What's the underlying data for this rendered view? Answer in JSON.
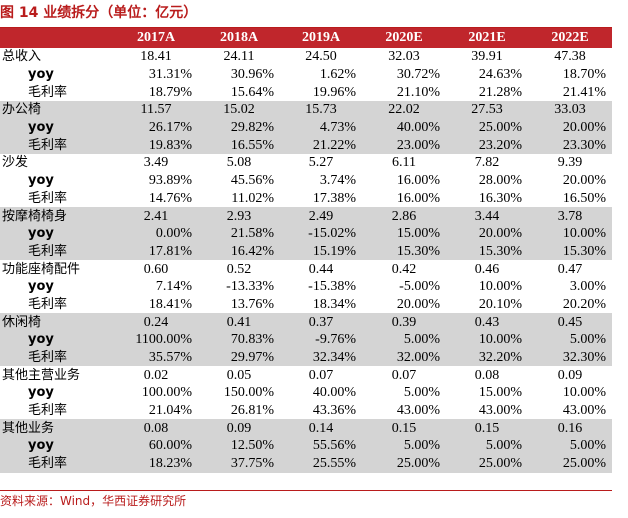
{
  "title": "图 14  业绩拆分（单位：亿元）",
  "header": {
    "label": "",
    "years": [
      "2017A",
      "2018A",
      "2019A",
      "2020E",
      "2021E",
      "2022E"
    ]
  },
  "rows": [
    {
      "label": "总收入",
      "kind": "main",
      "values": [
        "18.41",
        "24.11",
        "24.50",
        "32.03",
        "39.91",
        "47.38"
      ]
    },
    {
      "label": "yoy",
      "kind": "yoy",
      "values": [
        "31.31%",
        "30.96%",
        "1.62%",
        "30.72%",
        "24.63%",
        "18.70%"
      ]
    },
    {
      "label": "毛利率",
      "kind": "margin",
      "values": [
        "18.79%",
        "15.64%",
        "19.96%",
        "21.10%",
        "21.28%",
        "21.41%"
      ]
    },
    {
      "label": "办公椅",
      "kind": "main",
      "values": [
        "11.57",
        "15.02",
        "15.73",
        "22.02",
        "27.53",
        "33.03"
      ]
    },
    {
      "label": "yoy",
      "kind": "yoy",
      "values": [
        "26.17%",
        "29.82%",
        "4.73%",
        "40.00%",
        "25.00%",
        "20.00%"
      ]
    },
    {
      "label": "毛利率",
      "kind": "margin",
      "values": [
        "19.83%",
        "16.55%",
        "21.22%",
        "23.00%",
        "23.20%",
        "23.30%"
      ]
    },
    {
      "label": "沙发",
      "kind": "main",
      "values": [
        "3.49",
        "5.08",
        "5.27",
        "6.11",
        "7.82",
        "9.39"
      ]
    },
    {
      "label": "yoy",
      "kind": "yoy",
      "values": [
        "93.89%",
        "45.56%",
        "3.74%",
        "16.00%",
        "28.00%",
        "20.00%"
      ]
    },
    {
      "label": "毛利率",
      "kind": "margin",
      "values": [
        "14.76%",
        "11.02%",
        "17.38%",
        "16.00%",
        "16.30%",
        "16.50%"
      ]
    },
    {
      "label": "按摩椅椅身",
      "kind": "main",
      "values": [
        "2.41",
        "2.93",
        "2.49",
        "2.86",
        "3.44",
        "3.78"
      ]
    },
    {
      "label": "yoy",
      "kind": "yoy",
      "values": [
        "0.00%",
        "21.58%",
        "-15.02%",
        "15.00%",
        "20.00%",
        "10.00%"
      ]
    },
    {
      "label": "毛利率",
      "kind": "margin",
      "values": [
        "17.81%",
        "16.42%",
        "15.19%",
        "15.30%",
        "15.30%",
        "15.30%"
      ]
    },
    {
      "label": "功能座椅配件",
      "kind": "main",
      "values": [
        "0.60",
        "0.52",
        "0.44",
        "0.42",
        "0.46",
        "0.47"
      ]
    },
    {
      "label": "yoy",
      "kind": "yoy",
      "values": [
        "7.14%",
        "-13.33%",
        "-15.38%",
        "-5.00%",
        "10.00%",
        "3.00%"
      ]
    },
    {
      "label": "毛利率",
      "kind": "margin",
      "values": [
        "18.41%",
        "13.76%",
        "18.34%",
        "20.00%",
        "20.10%",
        "20.20%"
      ]
    },
    {
      "label": "休闲椅",
      "kind": "main",
      "values": [
        "0.24",
        "0.41",
        "0.37",
        "0.39",
        "0.43",
        "0.45"
      ]
    },
    {
      "label": "yoy",
      "kind": "yoy",
      "values": [
        "1100.00%",
        "70.83%",
        "-9.76%",
        "5.00%",
        "10.00%",
        "5.00%"
      ]
    },
    {
      "label": "毛利率",
      "kind": "margin",
      "values": [
        "35.57%",
        "29.97%",
        "32.34%",
        "32.00%",
        "32.20%",
        "32.30%"
      ]
    },
    {
      "label": "其他主营业务",
      "kind": "main",
      "values": [
        "0.02",
        "0.05",
        "0.07",
        "0.07",
        "0.08",
        "0.09"
      ]
    },
    {
      "label": "yoy",
      "kind": "yoy",
      "values": [
        "100.00%",
        "150.00%",
        "40.00%",
        "5.00%",
        "15.00%",
        "10.00%"
      ]
    },
    {
      "label": "毛利率",
      "kind": "margin",
      "values": [
        "21.04%",
        "26.81%",
        "43.36%",
        "43.00%",
        "43.00%",
        "43.00%"
      ]
    },
    {
      "label": "其他业务",
      "kind": "main",
      "values": [
        "0.08",
        "0.09",
        "0.14",
        "0.15",
        "0.15",
        "0.16"
      ]
    },
    {
      "label": "yoy",
      "kind": "yoy",
      "values": [
        "60.00%",
        "12.50%",
        "55.56%",
        "5.00%",
        "5.00%",
        "5.00%"
      ]
    },
    {
      "label": "毛利率",
      "kind": "margin",
      "values": [
        "18.23%",
        "37.75%",
        "25.55%",
        "25.00%",
        "25.00%",
        "25.00%"
      ]
    }
  ],
  "source": "资料来源：Wind，华西证券研究所"
}
